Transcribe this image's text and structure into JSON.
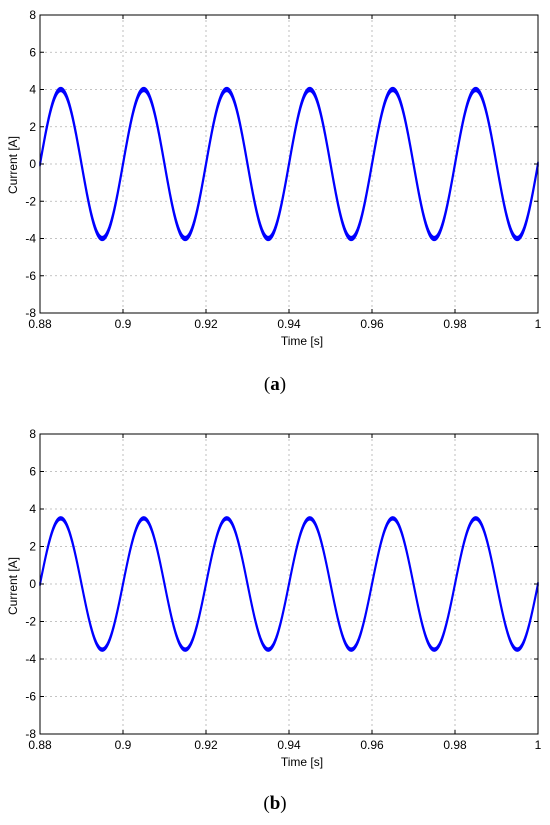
{
  "chart_data": [
    {
      "type": "line",
      "panel_label": "a",
      "xlabel": "Time [s]",
      "ylabel": "Current [A]",
      "xlim": [
        0.88,
        1.0
      ],
      "ylim": [
        -8,
        8
      ],
      "xticks": [
        0.88,
        0.9,
        0.92,
        0.94,
        0.96,
        0.98,
        1
      ],
      "xtick_labels": [
        "0.88",
        "0.9",
        "0.92",
        "0.94",
        "0.96",
        "0.98",
        "1"
      ],
      "yticks": [
        -8,
        -6,
        -4,
        -2,
        0,
        2,
        4,
        6,
        8
      ],
      "ytick_labels": [
        "-8",
        "-6",
        "-4",
        "-2",
        "0",
        "2",
        "4",
        "6",
        "8"
      ],
      "grid": true,
      "series": [
        {
          "color": "#0000ff",
          "waveform": "sine",
          "amplitude": 4.0,
          "frequency_hz": 50,
          "ripple": 0.2,
          "x": [
            0.88,
            0.885,
            0.89,
            0.895,
            0.9,
            0.905,
            0.91,
            0.915,
            0.92,
            0.925,
            0.93,
            0.935,
            0.94,
            0.945,
            0.95,
            0.955,
            0.96,
            0.965,
            0.97,
            0.975,
            0.98,
            0.985,
            0.99,
            0.995,
            1.0
          ],
          "y": [
            0,
            4,
            0,
            -4,
            0,
            4,
            0,
            -4,
            0,
            4,
            0,
            -4,
            0,
            4,
            0,
            -4,
            0,
            4,
            0,
            -4,
            0,
            4,
            0,
            -4,
            0
          ]
        }
      ]
    },
    {
      "type": "line",
      "panel_label": "b",
      "xlabel": "Time [s]",
      "ylabel": "Current [A]",
      "xlim": [
        0.88,
        1.0
      ],
      "ylim": [
        -8,
        8
      ],
      "xticks": [
        0.88,
        0.9,
        0.92,
        0.94,
        0.96,
        0.98,
        1
      ],
      "xtick_labels": [
        "0.88",
        "0.9",
        "0.92",
        "0.94",
        "0.96",
        "0.98",
        "1"
      ],
      "yticks": [
        -8,
        -6,
        -4,
        -2,
        0,
        2,
        4,
        6,
        8
      ],
      "ytick_labels": [
        "-8",
        "-6",
        "-4",
        "-2",
        "0",
        "2",
        "4",
        "6",
        "8"
      ],
      "grid": true,
      "series": [
        {
          "color": "#0000ff",
          "waveform": "sine",
          "amplitude": 3.5,
          "frequency_hz": 50,
          "ripple": 0.15,
          "x": [
            0.88,
            0.885,
            0.89,
            0.895,
            0.9,
            0.905,
            0.91,
            0.915,
            0.92,
            0.925,
            0.93,
            0.935,
            0.94,
            0.945,
            0.95,
            0.955,
            0.96,
            0.965,
            0.97,
            0.975,
            0.98,
            0.985,
            0.99,
            0.995,
            1.0
          ],
          "y": [
            0,
            3.5,
            0,
            -3.5,
            0,
            3.5,
            0,
            -3.5,
            0,
            3.5,
            0,
            -3.5,
            0,
            3.5,
            0,
            -3.5,
            0,
            3.5,
            0,
            -3.5,
            0,
            3.5,
            0,
            -3.5,
            0
          ]
        }
      ]
    }
  ]
}
